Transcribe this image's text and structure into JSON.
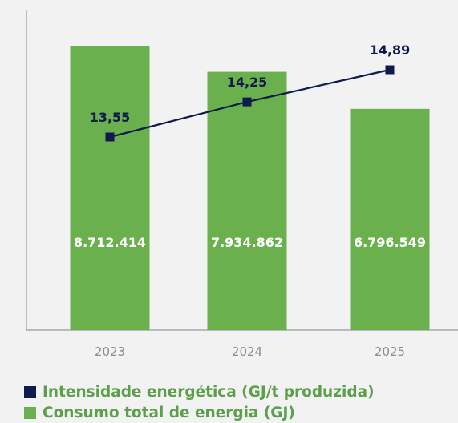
{
  "chart_data": {
    "type": "bar",
    "categories": [
      "2023",
      "2024",
      "2025"
    ],
    "series": [
      {
        "name": "Consumo total de energia (GJ)",
        "type": "bar",
        "values": [
          8712414,
          7934862,
          6796549
        ],
        "labels": [
          "8.712.414",
          "7.934.862",
          "6.796.549"
        ],
        "color": "#6ab04c",
        "label_color": "#ffffff"
      },
      {
        "name": "Intensidade energética (GJ/t produzida)",
        "type": "line",
        "values": [
          13.55,
          14.25,
          14.89
        ],
        "labels": [
          "13,55",
          "14,25",
          "14,89"
        ],
        "color": "#0f1b4d"
      }
    ],
    "legend_placement": "bottom-left",
    "grid": false,
    "axis_color": "#999999",
    "tick_label_color": "#8c8c8c"
  }
}
